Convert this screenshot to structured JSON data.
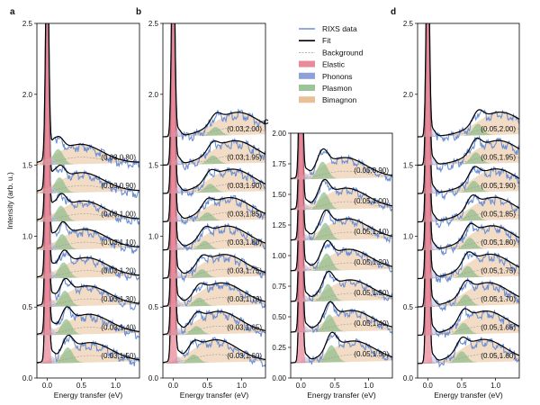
{
  "chart_data": {
    "type": "line",
    "shared": {
      "xlabel": "Energy transfer (eV)",
      "ylabel": "Intensity (arb. u.)",
      "xlim": [
        -0.15,
        1.35
      ],
      "x_ticks": [
        0.0,
        0.5,
        1.0
      ],
      "x_tick_labels": [
        "0.0",
        "0.5",
        "1.0"
      ]
    },
    "legend": {
      "location": "top-center",
      "entries": [
        {
          "label": "RIXS data",
          "kind": "line",
          "color": "#6a8fd6"
        },
        {
          "label": "Fit",
          "kind": "line",
          "color": "#000000"
        },
        {
          "label": "Background",
          "kind": "dashed",
          "color": "#9a9a9a"
        },
        {
          "label": "Elastic",
          "kind": "patch",
          "color": "#e88a9a"
        },
        {
          "label": "Phonons",
          "kind": "patch",
          "color": "#8ea0d8"
        },
        {
          "label": "Plasmon",
          "kind": "patch",
          "color": "#9cc49a"
        },
        {
          "label": "Bimagnon",
          "kind": "patch",
          "color": "#e8bf96"
        }
      ]
    },
    "panels": [
      {
        "label": "a",
        "ylim": [
          0.0,
          2.5
        ],
        "y_ticks": [
          0.0,
          0.5,
          1.0,
          1.5,
          2.0,
          2.5
        ],
        "y_tick_labels": [
          "0.0",
          "0.5",
          "1.0",
          "1.5",
          "2.0",
          "2.5"
        ],
        "offset_step": 0.2,
        "plasmon_amp": 0.11,
        "bimagnon_amp": 0.14,
        "spectra": [
          {
            "q": "(0.03,1.50)",
            "offset": 0.0,
            "plasmon_center": 0.3
          },
          {
            "q": "(0.03,1.40)",
            "offset": 0.2,
            "plasmon_center": 0.28
          },
          {
            "q": "(0.03,1.30)",
            "offset": 0.4,
            "plasmon_center": 0.26
          },
          {
            "q": "(0.03,1.20)",
            "offset": 0.6,
            "plasmon_center": 0.24
          },
          {
            "q": "(0.03,1.10)",
            "offset": 0.8,
            "plasmon_center": 0.22
          },
          {
            "q": "(0.03,1.00)",
            "offset": 1.0,
            "plasmon_center": 0.2
          },
          {
            "q": "(0.03,0.90)",
            "offset": 1.2,
            "plasmon_center": 0.18
          },
          {
            "q": "(0.03,0.80)",
            "offset": 1.4,
            "plasmon_center": 0.16
          }
        ]
      },
      {
        "label": "b",
        "ylim": [
          0.0,
          2.5
        ],
        "y_ticks": [
          0.0,
          0.5,
          1.0,
          1.5,
          2.0,
          2.5
        ],
        "y_tick_labels": [
          "0.0",
          "0.5",
          "1.0",
          "1.5",
          "2.0",
          "2.5"
        ],
        "offset_step": 0.2,
        "plasmon_amp": 0.06,
        "bimagnon_amp": 0.16,
        "spectra": [
          {
            "q": "(0.03,1.60)",
            "offset": 0.0,
            "plasmon_center": 0.3
          },
          {
            "q": "(0.03,1.65)",
            "offset": 0.2,
            "plasmon_center": 0.34
          },
          {
            "q": "(0.03,1.70)",
            "offset": 0.4,
            "plasmon_center": 0.38
          },
          {
            "q": "(0.03,1.75)",
            "offset": 0.6,
            "plasmon_center": 0.42
          },
          {
            "q": "(0.03,1.80)",
            "offset": 0.8,
            "plasmon_center": 0.46
          },
          {
            "q": "(0.03,1.85)",
            "offset": 1.0,
            "plasmon_center": 0.5
          },
          {
            "q": "(0.03,1.90)",
            "offset": 1.2,
            "plasmon_center": 0.54
          },
          {
            "q": "(0.03,1.95)",
            "offset": 1.4,
            "plasmon_center": 0.58
          },
          {
            "q": "(0.03,2.00)",
            "offset": 1.6,
            "plasmon_center": 0.62
          }
        ]
      },
      {
        "label": "c",
        "ylim": [
          0.0,
          2.0
        ],
        "y_ticks": [
          0.0,
          0.25,
          0.5,
          0.75,
          1.0,
          1.25,
          1.5,
          1.75,
          2.0
        ],
        "y_tick_labels": [
          "0.00",
          "0.25",
          "0.50",
          "0.75",
          "1.00",
          "1.25",
          "1.50",
          "1.75",
          "2.00"
        ],
        "offset_step": 0.25,
        "plasmon_amp": 0.14,
        "bimagnon_amp": 0.17,
        "spectra": [
          {
            "q": "(0.05,1.50)",
            "offset": 0.0,
            "plasmon_center": 0.45
          },
          {
            "q": "(0.05,1.40)",
            "offset": 0.25,
            "plasmon_center": 0.42
          },
          {
            "q": "(0.05,1.30)",
            "offset": 0.5,
            "plasmon_center": 0.4
          },
          {
            "q": "(0.05,1.20)",
            "offset": 0.75,
            "plasmon_center": 0.38
          },
          {
            "q": "(0.05,1.10)",
            "offset": 1.0,
            "plasmon_center": 0.36
          },
          {
            "q": "(0.05,1.00)",
            "offset": 1.25,
            "plasmon_center": 0.34
          },
          {
            "q": "(0.05,0.90)",
            "offset": 1.5,
            "plasmon_center": 0.32
          }
        ]
      },
      {
        "label": "d",
        "ylim": [
          0.0,
          2.5
        ],
        "y_ticks": [
          0.0,
          0.5,
          1.0,
          1.5,
          2.0,
          2.5
        ],
        "y_tick_labels": [
          "0.0",
          "0.5",
          "1.0",
          "1.5",
          "2.0",
          "2.5"
        ],
        "offset_step": 0.2,
        "plasmon_amp": 0.08,
        "bimagnon_amp": 0.16,
        "spectra": [
          {
            "q": "(0.05,1.60)",
            "offset": 0.0,
            "plasmon_center": 0.5
          },
          {
            "q": "(0.05,1.65)",
            "offset": 0.2,
            "plasmon_center": 0.53
          },
          {
            "q": "(0.05,1.70)",
            "offset": 0.4,
            "plasmon_center": 0.56
          },
          {
            "q": "(0.05,1.75)",
            "offset": 0.6,
            "plasmon_center": 0.59
          },
          {
            "q": "(0.05,1.80)",
            "offset": 0.8,
            "plasmon_center": 0.62
          },
          {
            "q": "(0.05,1.85)",
            "offset": 1.0,
            "plasmon_center": 0.65
          },
          {
            "q": "(0.05,1.90)",
            "offset": 1.2,
            "plasmon_center": 0.68
          },
          {
            "q": "(0.05,1.95)",
            "offset": 1.4,
            "plasmon_center": 0.71
          },
          {
            "q": "(0.05,2.00)",
            "offset": 1.6,
            "plasmon_center": 0.74
          }
        ]
      }
    ]
  }
}
